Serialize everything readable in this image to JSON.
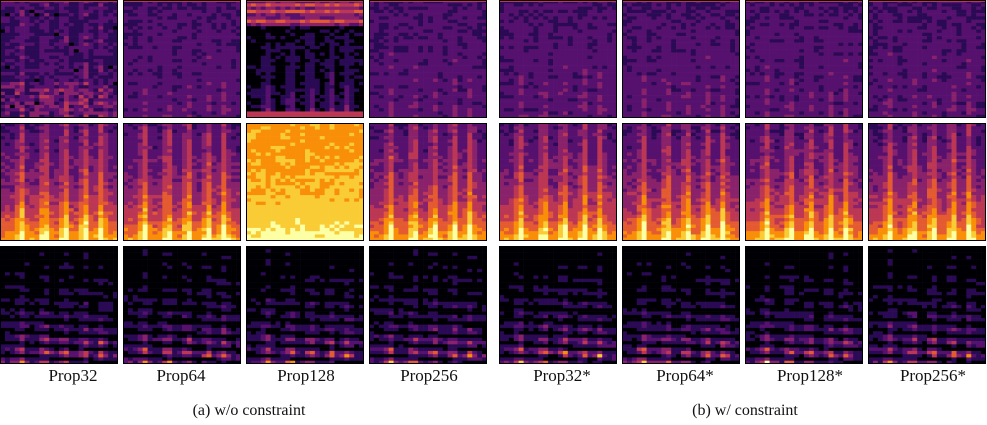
{
  "columns": [
    {
      "label": "Prop32"
    },
    {
      "label": "Prop64"
    },
    {
      "label": "Prop128"
    },
    {
      "label": "Prop256"
    },
    {
      "label": "Prop32*"
    },
    {
      "label": "Prop64*"
    },
    {
      "label": "Prop128*"
    },
    {
      "label": "Prop256*"
    }
  ],
  "groups": [
    {
      "caption": "(a) w/o constraint"
    },
    {
      "caption": "(b) w/ constraint"
    }
  ],
  "colors": {
    "background": "#ffffff",
    "colormap": [
      "#000004",
      "#2a0a54",
      "#56106e",
      "#89226a",
      "#bb3754",
      "#e45a31",
      "#f98e09",
      "#f9cb35",
      "#fcffa4"
    ]
  },
  "panels": [
    [
      {
        "style": "dark-noisy"
      },
      {
        "style": "flat-purple"
      },
      {
        "style": "striped-dark"
      },
      {
        "style": "flat-purple"
      },
      {
        "style": "flat-purple"
      },
      {
        "style": "flat-purple"
      },
      {
        "style": "flat-purple"
      },
      {
        "style": "flat-purple"
      }
    ],
    [
      {
        "style": "hot-spectrogram"
      },
      {
        "style": "hot-spectrogram"
      },
      {
        "style": "bright-flat"
      },
      {
        "style": "hot-spectrogram"
      },
      {
        "style": "hot-spectrogram"
      },
      {
        "style": "hot-spectrogram"
      },
      {
        "style": "hot-spectrogram"
      },
      {
        "style": "hot-spectrogram"
      }
    ],
    [
      {
        "style": "clean-spectrogram"
      },
      {
        "style": "clean-spectrogram"
      },
      {
        "style": "clean-spectrogram"
      },
      {
        "style": "clean-spectrogram"
      },
      {
        "style": "clean-spectrogram"
      },
      {
        "style": "clean-spectrogram"
      },
      {
        "style": "clean-spectrogram"
      },
      {
        "style": "clean-spectrogram"
      }
    ]
  ]
}
